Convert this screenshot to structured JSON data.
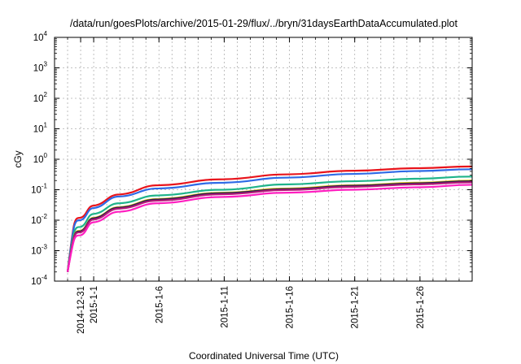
{
  "chart_data": {
    "type": "line",
    "title": "/data/run/goesPlots/archive/2015-01-29/flux/../bryn/31daysEarthDataAccumulated.plot",
    "xlabel": "Coordinated Universal Time (UTC)",
    "ylabel": "cGy",
    "y_scale": "log",
    "ylim": [
      0.0001,
      10000
    ],
    "y_ticks": [
      {
        "base": "10",
        "exp": "-4",
        "value": 0.0001
      },
      {
        "base": "10",
        "exp": "-3",
        "value": 0.001
      },
      {
        "base": "10",
        "exp": "-2",
        "value": 0.01
      },
      {
        "base": "10",
        "exp": "-1",
        "value": 0.1
      },
      {
        "base": "10",
        "exp": "0",
        "value": 1
      },
      {
        "base": "10",
        "exp": "1",
        "value": 10
      },
      {
        "base": "10",
        "exp": "2",
        "value": 100
      },
      {
        "base": "10",
        "exp": "3",
        "value": 1000
      },
      {
        "base": "10",
        "exp": "4",
        "value": 10000
      }
    ],
    "xlim": [
      "2014-12-29",
      "2015-01-30"
    ],
    "x_ticks": [
      "2014-12-31",
      "2015-1-1",
      "2015-1-6",
      "2015-1-11",
      "2015-1-16",
      "2015-1-21",
      "2015-1-26"
    ],
    "x_tick_dates": [
      "2014-12-31",
      "2015-01-01",
      "2015-01-06",
      "2015-01-11",
      "2015-01-16",
      "2015-01-21",
      "2015-01-26"
    ],
    "grid": true,
    "series": [
      {
        "color": "#e8141c",
        "x": [
          "2014-12-30",
          "2014-12-31",
          "2015-01-01",
          "2015-01-03",
          "2015-01-06",
          "2015-01-11",
          "2015-01-16",
          "2015-01-21",
          "2015-01-26",
          "2015-01-30"
        ],
        "values": [
          0.0002,
          0.012,
          0.03,
          0.07,
          0.14,
          0.22,
          0.32,
          0.42,
          0.51,
          0.58
        ]
      },
      {
        "color": "#2e6ae6",
        "x": [
          "2014-12-30",
          "2014-12-31",
          "2015-01-01",
          "2015-01-03",
          "2015-01-06",
          "2015-01-11",
          "2015-01-16",
          "2015-01-21",
          "2015-01-26",
          "2015-01-30"
        ],
        "values": [
          0.0002,
          0.01,
          0.025,
          0.06,
          0.11,
          0.17,
          0.25,
          0.33,
          0.41,
          0.47
        ]
      },
      {
        "color": "#1fb48a",
        "x": [
          "2014-12-30",
          "2014-12-31",
          "2015-01-01",
          "2015-01-03",
          "2015-01-06",
          "2015-01-11",
          "2015-01-16",
          "2015-01-21",
          "2015-01-26",
          "2015-01-30"
        ],
        "values": [
          0.0002,
          0.006,
          0.016,
          0.036,
          0.065,
          0.1,
          0.15,
          0.19,
          0.23,
          0.27
        ]
      },
      {
        "color": "#e8c81a",
        "x": [
          "2014-12-30",
          "2014-12-31",
          "2015-01-01",
          "2015-01-03",
          "2015-01-06",
          "2015-01-11",
          "2015-01-16",
          "2015-01-21",
          "2015-01-26",
          "2015-01-30"
        ],
        "values": [
          0.0002,
          0.0045,
          0.012,
          0.027,
          0.05,
          0.08,
          0.11,
          0.14,
          0.17,
          0.2
        ]
      },
      {
        "color": "#2a1f4f",
        "x": [
          "2014-12-30",
          "2014-12-31",
          "2015-01-01",
          "2015-01-03",
          "2015-01-06",
          "2015-01-11",
          "2015-01-16",
          "2015-01-21",
          "2015-01-26",
          "2015-01-30"
        ],
        "values": [
          0.0002,
          0.0043,
          0.0115,
          0.026,
          0.048,
          0.077,
          0.105,
          0.135,
          0.162,
          0.19
        ]
      },
      {
        "color": "#b31a78",
        "x": [
          "2014-12-30",
          "2014-12-31",
          "2015-01-01",
          "2015-01-03",
          "2015-01-06",
          "2015-01-11",
          "2015-01-16",
          "2015-01-21",
          "2015-01-26",
          "2015-01-30"
        ],
        "values": [
          0.0002,
          0.004,
          0.0105,
          0.024,
          0.044,
          0.071,
          0.098,
          0.125,
          0.15,
          0.175
        ]
      },
      {
        "color": "#ff1fc0",
        "x": [
          "2014-12-30",
          "2014-12-31",
          "2015-01-01",
          "2015-01-03",
          "2015-01-06",
          "2015-01-11",
          "2015-01-16",
          "2015-01-21",
          "2015-01-26",
          "2015-01-30"
        ],
        "values": [
          0.0002,
          0.0032,
          0.0085,
          0.019,
          0.036,
          0.058,
          0.08,
          0.1,
          0.12,
          0.145
        ]
      }
    ]
  }
}
